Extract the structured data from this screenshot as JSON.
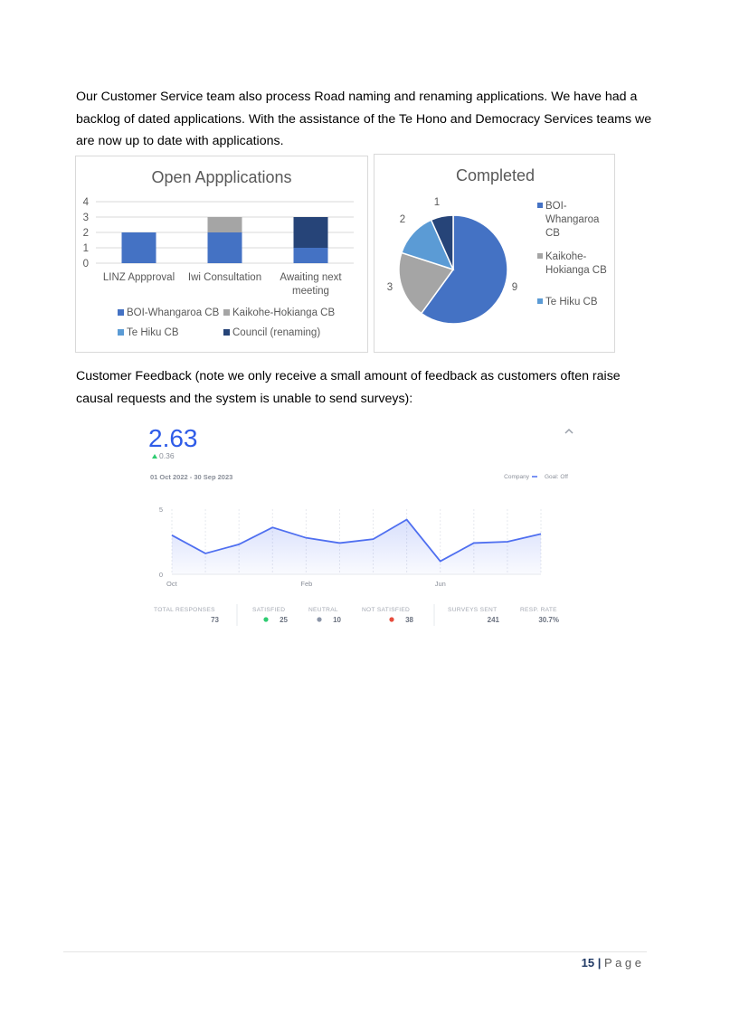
{
  "paragraphs": {
    "road_naming": "Our Customer Service team also process Road naming and renaming applications. We have had a backlog of dated applications. With the assistance of the Te Hono and Democracy Services teams we are now up to date with applications.",
    "feedback_intro": "Customer Feedback (note we only receive a small amount of feedback as customers often raise causal requests and the system is unable to send surveys):"
  },
  "colors": {
    "boi": "#4472c4",
    "kaikohe": "#a5a5a5",
    "tehiku": "#5b9bd5",
    "council": "#264478",
    "feedback_line": "#4f6ff0",
    "feedback_score": "#2f5ce8",
    "satisfied_dot": "#2ecc71",
    "neutral_dot": "#8c96a8",
    "not_satisfied_dot": "#e74c3c"
  },
  "chart_data": [
    {
      "type": "bar",
      "stacked": true,
      "title": "Open Appplications",
      "categories": [
        "LINZ Appproval",
        "Iwi Consultation",
        "Awaiting next meeting"
      ],
      "category_lines": [
        [
          "LINZ Appproval"
        ],
        [
          "Iwi Consultation"
        ],
        [
          "Awaiting next",
          "meeting"
        ]
      ],
      "series": [
        {
          "name": "BOI-Whangaroa CB",
          "values": [
            2,
            2,
            1
          ],
          "color": "#4472c4"
        },
        {
          "name": "Kaikohe-Hokianga CB",
          "values": [
            0,
            1,
            0
          ],
          "color": "#a5a5a5"
        },
        {
          "name": "Te Hiku CB",
          "values": [
            0,
            0,
            0
          ],
          "color": "#5b9bd5"
        },
        {
          "name": "Council (renaming)",
          "values": [
            0,
            0,
            2
          ],
          "color": "#264478"
        }
      ],
      "ylim": [
        0,
        4
      ],
      "yticks": [
        "0",
        "1",
        "2",
        "3",
        "4"
      ],
      "grid": true,
      "legend": "bottom"
    },
    {
      "type": "pie",
      "title": "Completed",
      "slices": [
        {
          "label": "BOI-Whangaroa CB",
          "legend_lines": [
            "BOI-",
            "Whangaroa",
            "CB"
          ],
          "value": 9,
          "color": "#4472c4"
        },
        {
          "label": "Kaikohe-Hokianga CB",
          "legend_lines": [
            "Kaikohe-",
            "Hokianga CB"
          ],
          "value": 3,
          "color": "#a5a5a5"
        },
        {
          "label": "Te Hiku CB",
          "legend_lines": [
            "Te Hiku CB"
          ],
          "value": 2,
          "color": "#5b9bd5"
        },
        {
          "label": "",
          "value": 1,
          "color": "#264478"
        }
      ],
      "legend": "right"
    },
    {
      "type": "area",
      "score": "2.63",
      "delta": "0.36",
      "date_range": "01 Oct 2022 - 30 Sep 2023",
      "legend_company": "Company",
      "legend_goal": "Goal: Off",
      "ylim": [
        0,
        5
      ],
      "yticks": [
        "0",
        "5"
      ],
      "xtick_labels": [
        {
          "index": 0,
          "label": "Oct"
        },
        {
          "index": 4,
          "label": "Feb"
        },
        {
          "index": 8,
          "label": "Jun"
        }
      ],
      "values": [
        3.0,
        1.6,
        2.3,
        3.6,
        2.8,
        2.4,
        2.7,
        4.2,
        1.0,
        2.4,
        2.5,
        3.1
      ],
      "stats": [
        {
          "label": "TOTAL RESPONSES",
          "value": "73",
          "dot": ""
        },
        {
          "label": "SATISFIED",
          "value": "25",
          "dot": "#2ecc71"
        },
        {
          "label": "NEUTRAL",
          "value": "10",
          "dot": "#8c96a8"
        },
        {
          "label": "NOT SATISFIED",
          "value": "38",
          "dot": "#e74c3c"
        },
        {
          "label": "SURVEYS SENT",
          "value": "241",
          "dot": ""
        },
        {
          "label": "RESP. RATE",
          "value": "30.7%",
          "dot": ""
        }
      ]
    }
  ],
  "footer": {
    "page_number": "15",
    "separator": "|",
    "page_word": "P a g e"
  }
}
